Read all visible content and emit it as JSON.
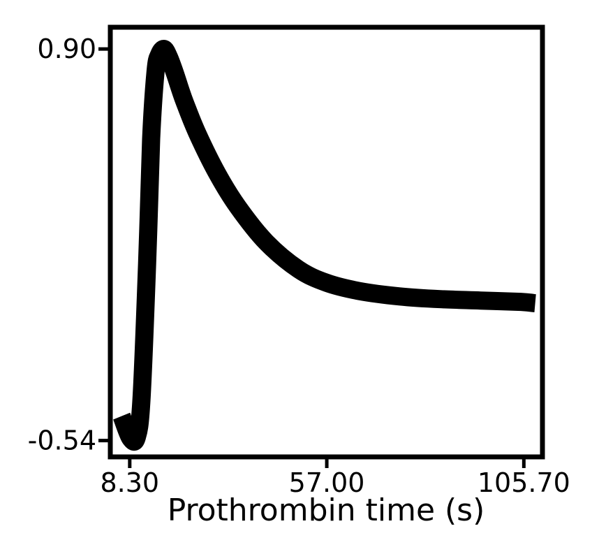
{
  "chart_data": {
    "type": "line",
    "title": "",
    "xlabel": "Prothrombin time (s)",
    "ylabel": "",
    "xlim": [
      3.5,
      110.3
    ],
    "ylim": [
      -0.6,
      0.98
    ],
    "x_ticks": [
      8.3,
      57.0,
      105.7
    ],
    "x_tick_labels": [
      "8.30",
      "57.00",
      "105.70"
    ],
    "y_ticks": [
      0.9,
      -0.54
    ],
    "y_tick_labels": [
      "0.90",
      "-0.54"
    ],
    "grid": false,
    "legend": "none",
    "line_color": "#000000",
    "series": [
      {
        "x": [
          6.3,
          8.4,
          10.0,
          11.2,
          12.6,
          13.6,
          14.7,
          15.6,
          16.8,
          18.0,
          19.5,
          20.8,
          22.0,
          25.0,
          30.0,
          35.0,
          42.0,
          50.0,
          57.0,
          65.0,
          75.0,
          85.0,
          95.0,
          105.0,
          108.5
        ],
        "y": [
          -0.45,
          -0.53,
          -0.53,
          -0.39,
          0.11,
          0.57,
          0.82,
          0.88,
          0.9,
          0.87,
          0.81,
          0.75,
          0.7,
          0.59,
          0.44,
          0.32,
          0.19,
          0.09,
          0.04,
          0.01,
          -0.01,
          -0.02,
          -0.025,
          -0.03,
          -0.035
        ]
      }
    ]
  }
}
